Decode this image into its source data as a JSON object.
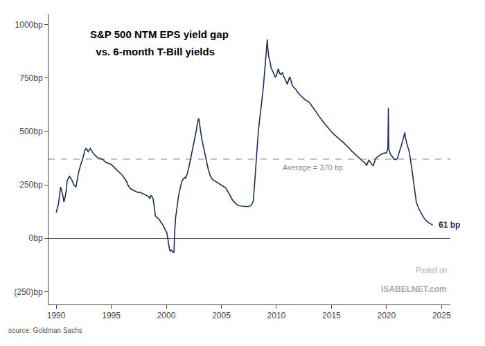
{
  "chart_data": {
    "type": "line",
    "title": "S&P 500 NTM EPS yield gap",
    "subtitle": "  vs. 6-month T-Bill yields",
    "source": "source: Goldman Sachs",
    "watermark": [
      "Posted on",
      "ISABELNET.com"
    ],
    "average": 370,
    "average_label": "Average = 370 bp",
    "average_color": "#888888",
    "end_label": "61 bp",
    "color": "#1a2e5a",
    "grid": false,
    "xlim": [
      1989.3,
      2025.8
    ],
    "xticks": [
      1990,
      1995,
      2000,
      2005,
      2010,
      2015,
      2020,
      2025
    ],
    "ylim": [
      -310,
      1050
    ],
    "yticks": [
      {
        "value": -250,
        "label": "(250)bp"
      },
      {
        "value": 0,
        "label": "0bp"
      },
      {
        "value": 250,
        "label": "250bp"
      },
      {
        "value": 500,
        "label": "500bp"
      },
      {
        "value": 750,
        "label": "750bp"
      },
      {
        "value": 1000,
        "label": "1000bp"
      }
    ],
    "x": [
      1990.0,
      1990.2,
      1990.4,
      1990.6,
      1990.7,
      1990.8,
      1990.9,
      1991.0,
      1991.2,
      1991.4,
      1991.6,
      1991.8,
      1992.0,
      1992.2,
      1992.4,
      1992.5,
      1992.6,
      1992.7,
      1992.8,
      1992.9,
      1993.0,
      1993.1,
      1993.2,
      1993.3,
      1993.4,
      1993.5,
      1993.6,
      1993.7,
      1993.8,
      1993.9,
      1994.0,
      1994.1,
      1994.2,
      1994.3,
      1994.4,
      1994.5,
      1994.6,
      1994.7,
      1994.8,
      1995.0,
      1995.2,
      1995.4,
      1995.6,
      1995.8,
      1996.0,
      1996.2,
      1996.4,
      1996.5,
      1996.6,
      1996.7,
      1996.8,
      1997.0,
      1997.2,
      1997.4,
      1997.6,
      1997.8,
      1998.0,
      1998.2,
      1998.4,
      1998.5,
      1998.6,
      1998.7,
      1998.8,
      1998.9,
      1999.0,
      1999.1,
      1999.2,
      1999.3,
      1999.4,
      1999.5,
      1999.6,
      1999.7,
      1999.8,
      1999.9,
      2000.0,
      2000.05,
      2000.1,
      2000.15,
      2000.2,
      2000.25,
      2000.3,
      2000.35,
      2000.4,
      2000.45,
      2000.5,
      2000.55,
      2000.6,
      2000.65,
      2000.7,
      2000.75,
      2000.8,
      2000.85,
      2000.9,
      2000.95,
      2001.0,
      2001.1,
      2001.2,
      2001.3,
      2001.4,
      2001.5,
      2001.6,
      2001.7,
      2001.75,
      2001.8,
      2001.85,
      2001.9,
      2001.95,
      2002.0,
      2002.1,
      2002.2,
      2002.3,
      2002.4,
      2002.5,
      2002.6,
      2002.7,
      2002.75,
      2002.8,
      2002.85,
      2002.9,
      2002.95,
      2003.0,
      2003.05,
      2003.1,
      2003.15,
      2003.2,
      2003.3,
      2003.4,
      2003.5,
      2003.6,
      2003.7,
      2003.8,
      2003.9,
      2004.0,
      2004.2,
      2004.4,
      2004.6,
      2004.8,
      2005.0,
      2005.2,
      2005.4,
      2005.6,
      2005.8,
      2006.0,
      2006.2,
      2006.4,
      2006.6,
      2006.8,
      2007.0,
      2007.2,
      2007.4,
      2007.5,
      2007.6,
      2007.7,
      2007.8,
      2007.9,
      2008.0,
      2008.1,
      2008.2,
      2008.3,
      2008.4,
      2008.5,
      2008.6,
      2008.7,
      2008.8,
      2008.9,
      2009.0,
      2009.05,
      2009.1,
      2009.15,
      2009.17,
      2009.2,
      2009.25,
      2009.3,
      2009.35,
      2009.4,
      2009.45,
      2009.5,
      2009.6,
      2009.7,
      2009.8,
      2009.9,
      2010.0,
      2010.05,
      2010.1,
      2010.15,
      2010.2,
      2010.25,
      2010.3,
      2010.35,
      2010.4,
      2010.45,
      2010.5,
      2010.55,
      2010.6,
      2010.65,
      2010.7,
      2010.75,
      2010.8,
      2010.9,
      2011.0,
      2011.05,
      2011.1,
      2011.15,
      2011.2,
      2011.25,
      2011.3,
      2011.35,
      2011.4,
      2011.45,
      2011.5,
      2011.6,
      2011.7,
      2011.8,
      2011.9,
      2012.0,
      2012.2,
      2012.4,
      2012.6,
      2012.8,
      2013.0,
      2013.2,
      2013.4,
      2013.6,
      2013.8,
      2014.0,
      2014.2,
      2014.4,
      2014.6,
      2014.8,
      2015.0,
      2015.2,
      2015.4,
      2015.6,
      2015.8,
      2016.0,
      2016.2,
      2016.4,
      2016.6,
      2016.8,
      2017.0,
      2017.2,
      2017.4,
      2017.6,
      2017.8,
      2018.0,
      2018.1,
      2018.2,
      2018.3,
      2018.4,
      2018.5,
      2018.6,
      2018.7,
      2018.8,
      2018.9,
      2019.0,
      2019.2,
      2019.4,
      2019.6,
      2019.8,
      2020.0,
      2020.05,
      2020.1,
      2020.13,
      2020.15,
      2020.17,
      2020.2,
      2020.3,
      2020.4,
      2020.5,
      2020.6,
      2020.7,
      2020.8,
      2020.9,
      2021.0,
      2021.05,
      2021.1,
      2021.15,
      2021.2,
      2021.3,
      2021.35,
      2021.4,
      2021.45,
      2021.5,
      2021.55,
      2021.6,
      2021.65,
      2021.67,
      2021.7,
      2021.75,
      2021.8,
      2021.85,
      2021.9,
      2021.95,
      2022.0,
      2022.05,
      2022.1,
      2022.15,
      2022.2,
      2022.25,
      2022.3,
      2022.35,
      2022.4,
      2022.45,
      2022.5,
      2022.55,
      2022.6,
      2022.65,
      2022.7,
      2022.75,
      2022.8,
      2022.85,
      2022.9,
      2022.95,
      2023.0,
      2023.1,
      2023.2,
      2023.3,
      2023.4,
      2023.5,
      2023.6,
      2023.7,
      2023.8,
      2023.9,
      2024.0,
      2024.1,
      2024.2
    ],
    "values": [
      120,
      160,
      240,
      200,
      170,
      190,
      220,
      270,
      290,
      275,
      250,
      240,
      300,
      340,
      370,
      390,
      410,
      420,
      415,
      405,
      415,
      420,
      410,
      400,
      395,
      390,
      385,
      380,
      375,
      375,
      375,
      370,
      370,
      365,
      360,
      355,
      355,
      350,
      350,
      345,
      335,
      325,
      315,
      305,
      295,
      280,
      265,
      250,
      240,
      235,
      230,
      225,
      220,
      215,
      215,
      210,
      205,
      200,
      195,
      185,
      200,
      195,
      185,
      150,
      105,
      100,
      95,
      90,
      85,
      75,
      70,
      60,
      50,
      40,
      35,
      25,
      10,
      -10,
      -30,
      -50,
      -55,
      -60,
      -55,
      -55,
      -60,
      -65,
      -65,
      -65,
      -65,
      20,
      80,
      100,
      115,
      135,
      160,
      195,
      220,
      245,
      265,
      275,
      280,
      285,
      280,
      285,
      295,
      300,
      310,
      320,
      345,
      370,
      395,
      420,
      450,
      470,
      490,
      510,
      530,
      545,
      555,
      560,
      545,
      525,
      505,
      490,
      470,
      445,
      415,
      390,
      368,
      345,
      325,
      308,
      290,
      275,
      268,
      262,
      255,
      248,
      242,
      235,
      218,
      200,
      180,
      168,
      158,
      152,
      150,
      150,
      148,
      148,
      148,
      152,
      155,
      162,
      175,
      240,
      320,
      400,
      460,
      520,
      565,
      600,
      650,
      700,
      760,
      820,
      850,
      870,
      890,
      930,
      900,
      870,
      850,
      840,
      830,
      820,
      800,
      790,
      775,
      765,
      755,
      760,
      770,
      780,
      790,
      790,
      780,
      770,
      770,
      765,
      770,
      775,
      775,
      765,
      760,
      750,
      745,
      740,
      730,
      720,
      730,
      740,
      750,
      755,
      750,
      740,
      730,
      720,
      715,
      710,
      705,
      700,
      695,
      685,
      678,
      668,
      658,
      648,
      642,
      635,
      620,
      607,
      592,
      576,
      560,
      548,
      535,
      522,
      510,
      498,
      488,
      478,
      468,
      460,
      452,
      442,
      435,
      422,
      410,
      400,
      390,
      380,
      372,
      362,
      355,
      345,
      340,
      355,
      365,
      358,
      352,
      345,
      338,
      355,
      372,
      382,
      390,
      395,
      398,
      400,
      408,
      415,
      430,
      600,
      610,
      420,
      400,
      390,
      382,
      375,
      370,
      368,
      370,
      375,
      382,
      390,
      400,
      410,
      425,
      435,
      445,
      455,
      465,
      475,
      480,
      490,
      495,
      475,
      462,
      450,
      440,
      432,
      425,
      418,
      408,
      395,
      380,
      362,
      345,
      325,
      305,
      285,
      262,
      240,
      218,
      200,
      185,
      172,
      162,
      155,
      148,
      142,
      138,
      132,
      122,
      112,
      102,
      95,
      88,
      82,
      78,
      74,
      70,
      66,
      63,
      61
    ]
  }
}
